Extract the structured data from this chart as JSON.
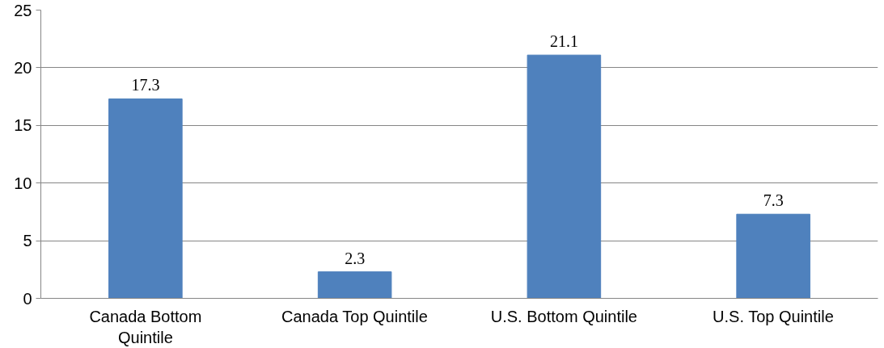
{
  "chart_data": {
    "type": "bar",
    "categories": [
      "Canada Bottom Quintile",
      "Canada Top Quintile",
      "U.S. Bottom Quintile",
      "U.S. Top Quintile"
    ],
    "values": [
      17.3,
      2.3,
      21.1,
      7.3
    ],
    "color": "#4f81bd",
    "ylim": [
      0,
      25
    ],
    "yticks": [
      0,
      5,
      10,
      15,
      20,
      25
    ],
    "grid": "y",
    "data_labels": true
  }
}
